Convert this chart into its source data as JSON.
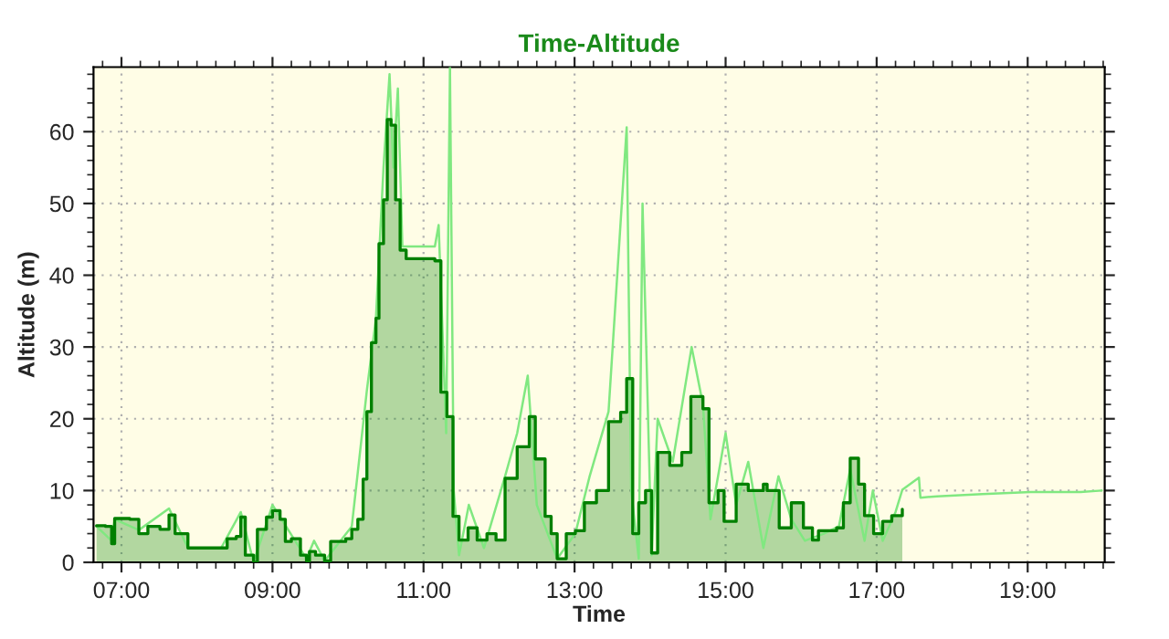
{
  "chart_data": {
    "type": "area",
    "title": "Time-Altitude",
    "xlabel": "Time",
    "ylabel": "Altitude (m)",
    "xlim": [
      6.63,
      20.02
    ],
    "ylim": [
      0,
      69
    ],
    "xticks": [
      {
        "value": 7,
        "label": "07:00"
      },
      {
        "value": 9,
        "label": "09:00"
      },
      {
        "value": 11,
        "label": "11:00"
      },
      {
        "value": 13,
        "label": "13:00"
      },
      {
        "value": 15,
        "label": "15:00"
      },
      {
        "value": 17,
        "label": "17:00"
      },
      {
        "value": 19,
        "label": "19:00"
      }
    ],
    "yticks": [
      0,
      10,
      20,
      30,
      40,
      50,
      60
    ],
    "grid": true,
    "legend": false,
    "series": [
      {
        "color": "#008000",
        "x": [
          6.67,
          6.79,
          6.87,
          6.91,
          7.11,
          7.23,
          7.35,
          7.51,
          7.63,
          7.71,
          7.88,
          8.32,
          8.4,
          8.52,
          8.58,
          8.64,
          8.75,
          8.8,
          8.92,
          9.0,
          9.1,
          9.17,
          9.25,
          9.37,
          9.45,
          9.49,
          9.57,
          9.69,
          9.77,
          9.97,
          10.05,
          10.13,
          10.2,
          10.25,
          10.31,
          10.37,
          10.41,
          10.47,
          10.52,
          10.57,
          10.63,
          10.69,
          10.77,
          11.03,
          11.15,
          11.23,
          11.31,
          11.39,
          11.47,
          11.59,
          11.71,
          11.84,
          11.96,
          12.08,
          12.24,
          12.4,
          12.48,
          12.61,
          12.69,
          12.77,
          12.89,
          13.01,
          13.13,
          13.29,
          13.45,
          13.61,
          13.69,
          13.77,
          13.85,
          13.94,
          14.02,
          14.1,
          14.26,
          14.42,
          14.54,
          14.7,
          14.78,
          14.9,
          14.98,
          15.14,
          15.3,
          15.5,
          15.55,
          15.71,
          15.87,
          16.03,
          16.15,
          16.23,
          16.47,
          16.56,
          16.65,
          16.76,
          16.84,
          16.96,
          17.08,
          17.2,
          17.34
        ],
        "values": [
          5.1,
          5,
          2.6,
          6.1,
          6,
          4,
          5,
          4.6,
          6.6,
          4,
          2,
          2,
          3.3,
          3.6,
          6.3,
          1,
          0,
          4.6,
          6.3,
          7.2,
          6,
          2.9,
          3.3,
          1,
          0.2,
          1.5,
          1,
          0.2,
          2.9,
          3.3,
          4.6,
          6,
          11.6,
          21,
          30.6,
          34,
          44.4,
          50.5,
          61.7,
          60.9,
          50.5,
          43.5,
          42.3,
          42.3,
          42,
          23.7,
          20.3,
          6.4,
          3.1,
          4.8,
          3.1,
          4,
          3.1,
          11.7,
          16.1,
          20.3,
          14.4,
          6.4,
          4,
          0.5,
          4,
          4.4,
          8.3,
          10,
          19.6,
          20.9,
          25.6,
          4,
          8.3,
          10,
          1.3,
          15.3,
          13.5,
          15.3,
          23.1,
          21.4,
          8.3,
          10,
          5.7,
          10.9,
          10,
          10.9,
          10,
          4.8,
          8.3,
          4.8,
          3.1,
          4.4,
          4.8,
          8.3,
          14.5,
          10.9,
          6.5,
          4,
          5.7,
          6.5,
          7.4
        ]
      },
      {
        "type": "line",
        "color": "#80e880",
        "x": [
          6.67,
          6.87,
          6.91,
          7.23,
          7.63,
          7.88,
          8.32,
          8.58,
          8.75,
          9.0,
          9.45,
          9.55,
          9.69,
          10.05,
          10.25,
          10.37,
          10.47,
          10.55,
          10.6,
          10.66,
          10.72,
          11.15,
          11.2,
          11.3,
          11.35,
          11.4,
          11.47,
          11.6,
          11.8,
          12.08,
          12.24,
          12.38,
          12.5,
          12.77,
          13.01,
          13.2,
          13.45,
          13.69,
          13.75,
          13.85,
          13.9,
          14.02,
          14.1,
          14.3,
          14.55,
          14.7,
          14.8,
          15.0,
          15.14,
          15.3,
          15.5,
          15.7,
          15.87,
          16.05,
          16.3,
          16.5,
          16.65,
          16.84,
          16.95,
          17.08,
          17.25,
          17.34,
          17.56,
          17.58,
          17.8,
          18.4,
          19.04,
          19.7,
          19.98
        ],
        "values": [
          5,
          3,
          6,
          4.5,
          7.5,
          2,
          2,
          7,
          0,
          8,
          0.5,
          3,
          0.2,
          5,
          24,
          34,
          55,
          68,
          55,
          66,
          44,
          44,
          47,
          18,
          69,
          10,
          1,
          8,
          2,
          12,
          18,
          26,
          8,
          0.5,
          4,
          12,
          21,
          60.6,
          10,
          0.5,
          50,
          1,
          20,
          14,
          30,
          22,
          6,
          18,
          8,
          14,
          2,
          12,
          6,
          3,
          4,
          5,
          13,
          3,
          10,
          3,
          7,
          10.1,
          11.8,
          9,
          9.2,
          9.5,
          9.8,
          9.8,
          10
        ]
      }
    ]
  }
}
